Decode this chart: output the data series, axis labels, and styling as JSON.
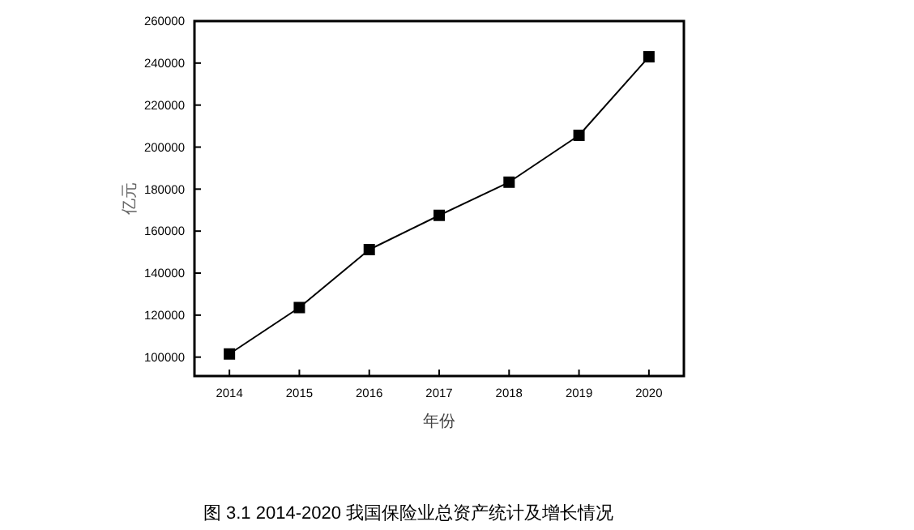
{
  "chart_data": {
    "type": "line",
    "xlabel": "年份",
    "ylabel": "亿元",
    "x": [
      2014,
      2015,
      2016,
      2017,
      2018,
      2019,
      2020
    ],
    "series": [
      {
        "color": "#000000",
        "values": [
          101500,
          123600,
          151200,
          167500,
          183300,
          205600,
          243000
        ]
      }
    ],
    "xlim": [
      2013.5,
      2020.5
    ],
    "xticks": [
      2014,
      2015,
      2016,
      2017,
      2018,
      2019,
      2020
    ],
    "ylim": [
      91000,
      260000
    ],
    "yticks": [
      100000,
      120000,
      140000,
      160000,
      180000,
      200000,
      220000,
      240000,
      260000
    ],
    "marker": "square",
    "line_style": "solid",
    "grid": false,
    "annotations": [
      "图 3.1  2014-2020 我国保险业总资产统计及增长情况"
    ]
  }
}
